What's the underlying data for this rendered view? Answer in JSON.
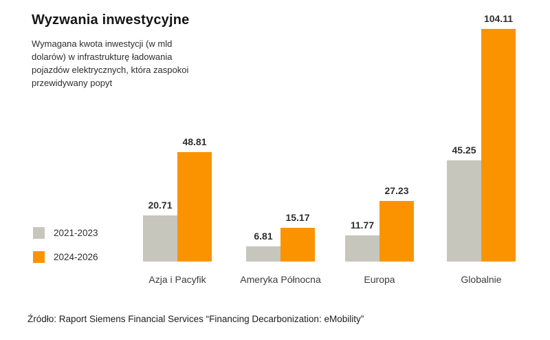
{
  "header": {
    "title": "Wyzwania inwestycyjne",
    "subtitle": "Wymagana kwota inwestycji (w mld\ndolarów) w infrastrukturę ładowania\npojazdów elektrycznych, która zaspokoi\nprzewidywany popyt"
  },
  "legend": {
    "items": [
      {
        "label": "2021-2023",
        "color": "#C6C6BC"
      },
      {
        "label": "2024-2026",
        "color": "#FB9300"
      }
    ]
  },
  "chart_data": {
    "type": "bar",
    "title": "Wyzwania inwestycyjne",
    "subtitle": "Wymagana kwota inwestycji (w mld dolarów) w infrastrukturę ładowania pojazdów elektrycznych, która zaspokoi przewidywany popyt",
    "categories": [
      "Azja i Pacyfik",
      "Ameryka Północna",
      "Europa",
      "Globalnie"
    ],
    "series": [
      {
        "name": "2021-2023",
        "color": "#C6C6BC",
        "values": [
          20.71,
          6.81,
          11.77,
          45.25
        ]
      },
      {
        "name": "2024-2026",
        "color": "#FB9300",
        "values": [
          48.81,
          15.17,
          27.23,
          104.11
        ]
      }
    ],
    "value_labels": [
      [
        "20.71",
        "6.81",
        "11.77",
        "45.25"
      ],
      [
        "48.81",
        "15.17",
        "27.23",
        "104.11"
      ]
    ],
    "xlabel": "",
    "ylabel": "",
    "ylim": [
      0,
      110
    ],
    "grid": false,
    "axis_lines": false,
    "legend_position": "middle-left"
  },
  "footer": {
    "source": "Źródło: Raport Siemens Financial Services “Financing Decarbonization: eMobility”"
  }
}
